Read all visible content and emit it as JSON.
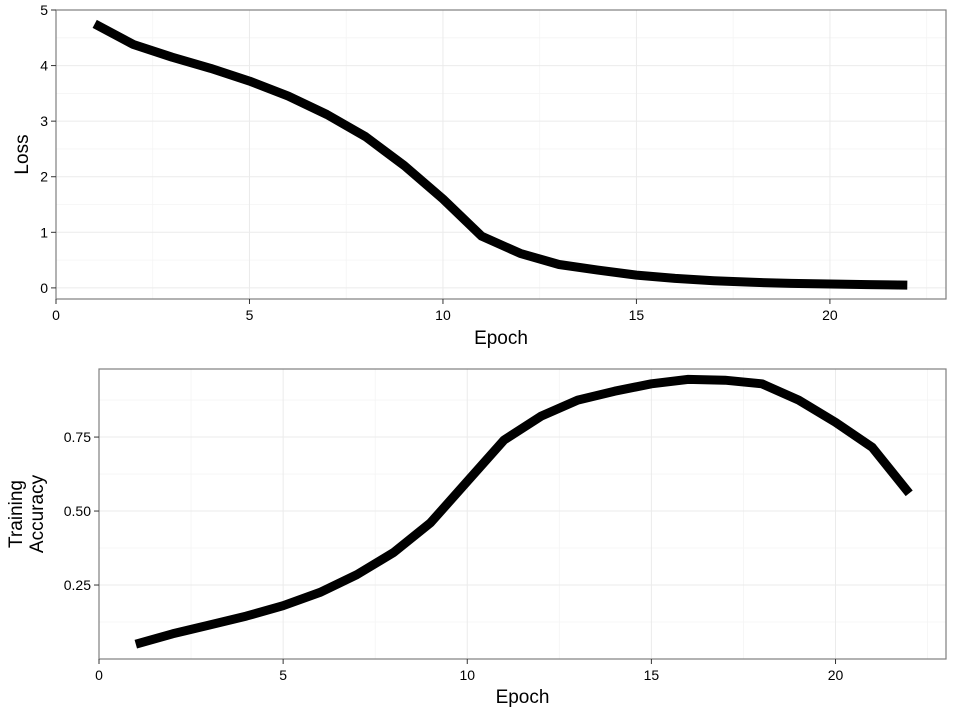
{
  "chart_data": [
    {
      "type": "line",
      "title": "",
      "xlabel": "Epoch",
      "ylabel": "Loss",
      "xlim": [
        0,
        23
      ],
      "ylim": [
        -0.2,
        5
      ],
      "xticks": [
        0,
        5,
        10,
        15,
        20
      ],
      "yticks": [
        0,
        1,
        2,
        3,
        4,
        5
      ],
      "ytick_labels": [
        "0",
        "1",
        "2",
        "3",
        "4",
        "5"
      ],
      "grid": true,
      "series": [
        {
          "color": "#000000",
          "x": [
            1,
            2,
            3,
            4,
            5,
            6,
            7,
            8,
            9,
            10,
            11,
            12,
            13,
            14,
            15,
            16,
            17,
            18,
            19,
            20,
            21,
            22
          ],
          "y": [
            4.75,
            4.38,
            4.15,
            3.95,
            3.72,
            3.45,
            3.12,
            2.72,
            2.2,
            1.6,
            0.93,
            0.62,
            0.42,
            0.32,
            0.23,
            0.17,
            0.13,
            0.1,
            0.08,
            0.07,
            0.06,
            0.05
          ]
        }
      ]
    },
    {
      "type": "line",
      "title": "",
      "xlabel": "Epoch",
      "ylabel": [
        "Training",
        "Accuracy"
      ],
      "xlim": [
        0,
        23
      ],
      "ylim": [
        0.0,
        0.98
      ],
      "xticks": [
        0,
        5,
        10,
        15,
        20
      ],
      "yticks": [
        0.25,
        0.5,
        0.75
      ],
      "ytick_labels": [
        "0.25",
        "0.50",
        "0.75"
      ],
      "grid": true,
      "series": [
        {
          "color": "#000000",
          "x": [
            1,
            2,
            3,
            4,
            5,
            6,
            7,
            8,
            9,
            10,
            11,
            12,
            13,
            14,
            15,
            16,
            17,
            18,
            19,
            20,
            21,
            22
          ],
          "y": [
            0.05,
            0.085,
            0.115,
            0.145,
            0.18,
            0.225,
            0.285,
            0.36,
            0.46,
            0.6,
            0.74,
            0.82,
            0.875,
            0.905,
            0.93,
            0.945,
            0.942,
            0.93,
            0.875,
            0.8,
            0.715,
            0.56
          ]
        }
      ]
    }
  ]
}
